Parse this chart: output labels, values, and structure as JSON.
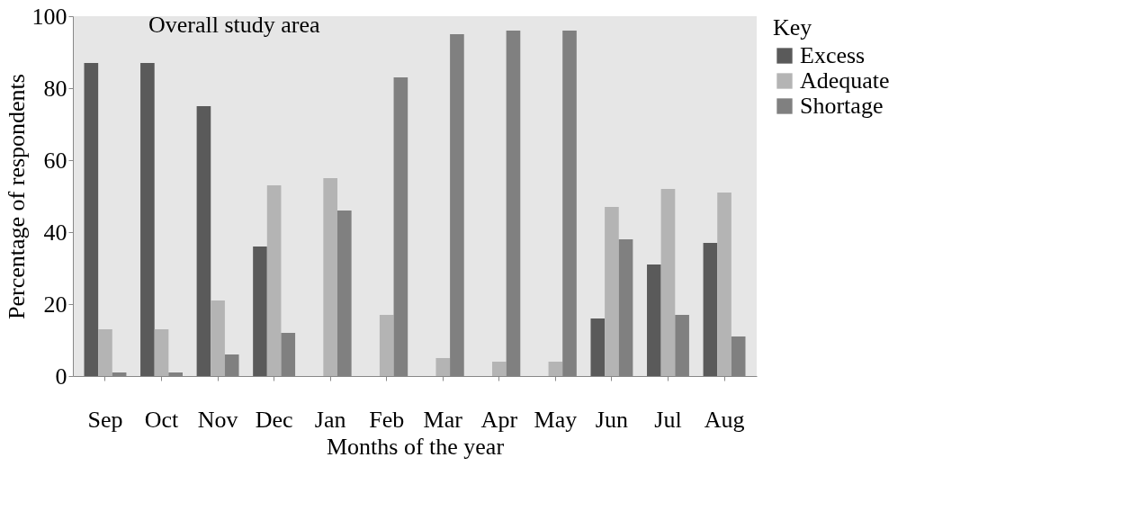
{
  "chart_data": {
    "type": "bar",
    "title": "Overall study area",
    "xlabel": "Months of the year",
    "ylabel": "Percentage of respondents",
    "legend_title": "Key",
    "categories": [
      "Sep",
      "Oct",
      "Nov",
      "Dec",
      "Jan",
      "Feb",
      "Mar",
      "Apr",
      "May",
      "Jun",
      "Jul",
      "Aug"
    ],
    "series": [
      {
        "name": "Excess",
        "color": "#5a5a5a",
        "values": [
          87,
          87,
          75,
          36,
          0,
          0,
          0,
          0,
          0,
          16,
          31,
          37
        ]
      },
      {
        "name": "Adequate",
        "color": "#b4b4b4",
        "values": [
          13,
          13,
          21,
          53,
          55,
          17,
          5,
          4,
          4,
          47,
          52,
          51
        ]
      },
      {
        "name": "Shortage",
        "color": "#808080",
        "values": [
          1,
          1,
          6,
          12,
          46,
          83,
          95,
          96,
          96,
          38,
          17,
          11
        ]
      }
    ],
    "ylim": [
      0,
      100
    ],
    "yticks": [
      0,
      20,
      40,
      60,
      80,
      100
    ],
    "grid": false,
    "legend": "right"
  }
}
